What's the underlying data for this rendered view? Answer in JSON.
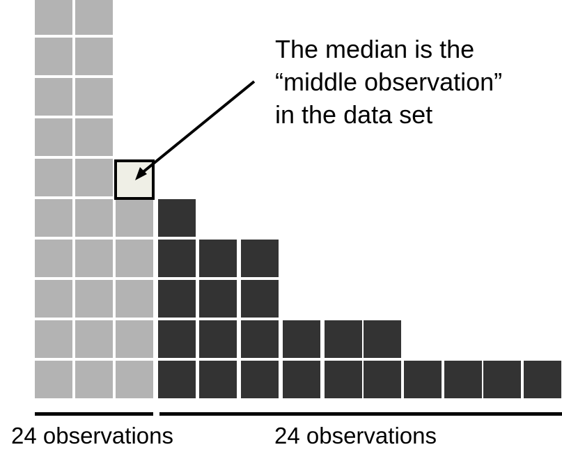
{
  "annotation": {
    "lines": [
      "The median is the",
      "“middle observation”",
      "in the data set"
    ]
  },
  "groups": [
    {
      "label": "24 observations",
      "color": "#b3b3b3"
    },
    {
      "label": "24 observations",
      "color": "#333333"
    }
  ],
  "colors": {
    "median_fill": "#efefe6",
    "median_border": "#000000",
    "bracket": "#000000"
  },
  "column_heights": [
    10,
    10,
    6,
    5,
    4,
    4,
    2,
    2,
    2,
    1,
    1,
    1,
    1
  ],
  "median": {
    "column": 3,
    "level": 6
  }
}
